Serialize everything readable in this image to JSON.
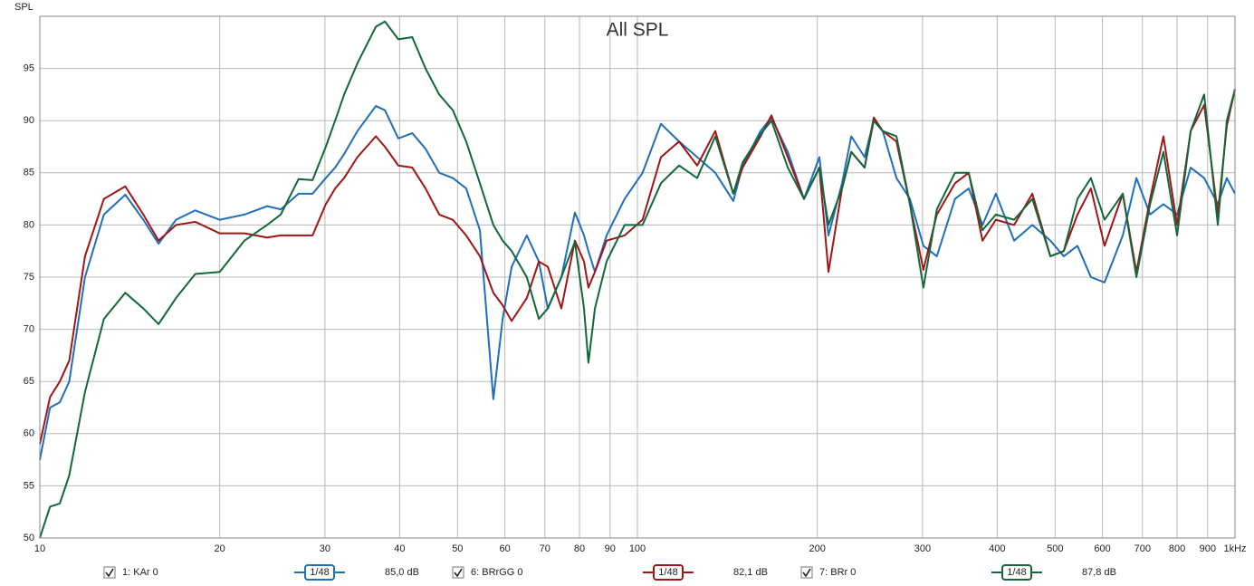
{
  "chart_data": {
    "type": "line",
    "title": "All SPL",
    "y_label": "SPL",
    "log_x": true,
    "grid": true,
    "x": [
      10,
      10.4,
      10.8,
      11.2,
      11.9,
      12.8,
      13.9,
      14.9,
      15.8,
      16.9,
      18.2,
      20,
      22,
      24,
      25.3,
      27.1,
      28.6,
      30.1,
      31.2,
      32.3,
      34,
      36.5,
      37.8,
      39.8,
      42,
      44.2,
      46.6,
      49.1,
      51.7,
      54.5,
      57.4,
      59.5,
      61.6,
      65.3,
      68.4,
      70.8,
      74.6,
      78.6,
      81.4,
      82.8,
      84.9,
      88.8,
      95.2,
      102,
      109.5,
      117.4,
      125.9,
      135,
      144.7,
      150,
      160.7,
      167.6,
      178.5,
      190,
      201.6,
      208.8,
      220,
      228,
      240,
      248.6,
      257.4,
      271.3,
      285.8,
      301,
      317,
      340,
      358.5,
      378,
      398,
      427,
      458,
      491,
      517,
      545,
      574,
      605,
      649,
      684,
      721,
      759,
      800,
      843,
      888,
      936,
      969,
      1000
    ],
    "xlim": [
      10,
      1000
    ],
    "xticks": [
      10,
      20,
      30,
      40,
      50,
      60,
      70,
      80,
      90,
      100,
      200,
      300,
      400,
      500,
      600,
      700,
      800,
      900,
      {
        "value": 1000,
        "label": "1kHz"
      }
    ],
    "ylim": [
      50,
      100
    ],
    "yticks": [
      50,
      55,
      60,
      65,
      70,
      75,
      80,
      85,
      90,
      95
    ],
    "series": [
      {
        "name": "1: KAr 0",
        "color": "#1f6fba",
        "smoothing": "1/48",
        "level": "85,0 dB",
        "values": [
          57.5,
          62.5,
          63,
          65,
          75,
          81,
          82.9,
          80.5,
          78.2,
          80.5,
          81.4,
          80.5,
          81,
          81.8,
          81.5,
          83,
          83,
          84.5,
          85.5,
          86.8,
          89,
          91.4,
          91,
          88.3,
          88.8,
          87.3,
          85,
          84.5,
          83.5,
          79.5,
          63.3,
          71,
          76,
          79,
          76.5,
          72,
          75,
          81.2,
          79,
          77.5,
          75.5,
          79,
          82.5,
          85,
          89.7,
          88,
          86.5,
          85,
          82.3,
          85.7,
          89,
          90.3,
          87,
          82.5,
          86.5,
          79,
          84,
          88.5,
          86.5,
          90,
          89,
          84.5,
          82.5,
          78,
          77,
          82.5,
          83.5,
          80,
          83,
          78.5,
          80,
          78.5,
          77,
          78,
          75,
          74.5,
          79,
          84.5,
          81,
          82,
          81,
          85.5,
          84.5,
          82,
          84.5,
          83
        ]
      },
      {
        "name": "6: BRrGG 0",
        "color": "#a01515",
        "smoothing": "1/48",
        "level": "82,1 dB",
        "values": [
          59,
          63.5,
          65,
          67,
          77,
          82.5,
          83.7,
          81,
          78.5,
          80,
          80.3,
          79.2,
          79.2,
          78.8,
          79,
          79,
          79,
          82,
          83.5,
          84.5,
          86.5,
          88.5,
          87.5,
          85.7,
          85.5,
          83.5,
          81,
          80.5,
          79,
          77,
          73.5,
          72.3,
          70.8,
          73,
          76.5,
          76,
          72,
          78.5,
          76.5,
          74,
          75.5,
          78.5,
          79,
          80.5,
          86.5,
          88,
          85.7,
          89,
          83,
          85.5,
          88.5,
          90.5,
          86.5,
          82.5,
          85.5,
          75.5,
          83.5,
          87,
          85.5,
          90.3,
          89,
          88,
          82,
          75.7,
          81,
          84,
          85,
          78.5,
          80.5,
          80,
          83,
          77,
          77.5,
          81,
          83.5,
          78,
          83,
          75.5,
          82.5,
          88.5,
          80,
          89,
          91.5,
          81,
          89.5,
          93
        ]
      },
      {
        "name": "7: BRr 0",
        "color": "#12683a",
        "smoothing": "1/48",
        "level": "87,8 dB",
        "values": [
          50,
          53,
          53.3,
          56,
          64,
          71,
          73.5,
          72,
          70.5,
          73,
          75.3,
          75.5,
          78.5,
          80,
          81,
          84.4,
          84.3,
          87.5,
          90,
          92.5,
          95.5,
          99,
          99.5,
          97.8,
          98,
          95,
          92.5,
          91,
          88,
          84,
          80,
          78.5,
          77.5,
          75,
          71,
          72,
          75,
          78.4,
          72,
          66.8,
          72,
          76.5,
          80,
          80,
          84,
          85.7,
          84.5,
          88.5,
          83,
          86,
          88.7,
          90,
          85.5,
          82.5,
          85.5,
          80,
          83.5,
          87,
          85.5,
          90,
          89,
          88.5,
          82,
          74,
          81.5,
          85,
          85,
          79.5,
          81,
          80.5,
          82.5,
          77,
          77.5,
          82.5,
          84.5,
          80.5,
          83,
          75,
          82,
          87,
          79,
          89,
          92.5,
          80,
          90,
          93
        ]
      }
    ]
  }
}
